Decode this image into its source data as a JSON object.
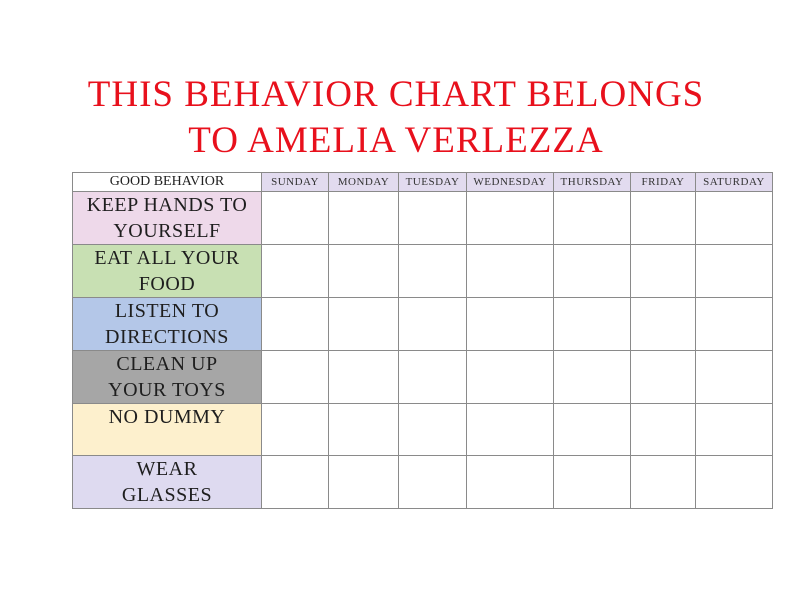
{
  "title": {
    "line1": "THIS BEHAVIOR CHART BELONGS",
    "line2": "TO AMELIA VERLEZZA"
  },
  "table": {
    "corner_header": "GOOD BEHAVIOR",
    "days": [
      "SUNDAY",
      "MONDAY",
      "TUESDAY",
      "WEDNESDAY",
      "THURSDAY",
      "FRIDAY",
      "SATURDAY"
    ],
    "behaviors": [
      {
        "line1": "KEEP HANDS TO",
        "line2": "YOURSELF",
        "color": "#eed9ea"
      },
      {
        "line1": "EAT ALL YOUR",
        "line2": "FOOD",
        "color": "#c8e0b3"
      },
      {
        "line1": "LISTEN TO",
        "line2": "DIRECTIONS",
        "color": "#b4c7e8"
      },
      {
        "line1": "CLEAN UP",
        "line2": "YOUR TOYS",
        "color": "#a6a6a6"
      },
      {
        "line1": "NO DUMMY",
        "line2": "",
        "color": "#fdf0cd"
      },
      {
        "line1": "WEAR",
        "line2": "GLASSES",
        "color": "#dedaf0"
      }
    ]
  }
}
